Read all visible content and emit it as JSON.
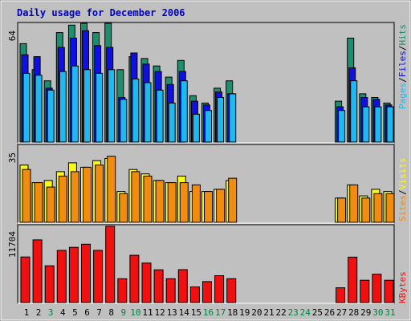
{
  "title": "Daily usage for December 2006",
  "days": [
    "1",
    "2",
    "3",
    "4",
    "5",
    "6",
    "7",
    "8",
    "9",
    "10",
    "11",
    "12",
    "13",
    "14",
    "15",
    "16",
    "17",
    "18",
    "19",
    "20",
    "21",
    "22",
    "23",
    "24",
    "25",
    "26",
    "27",
    "28",
    "29",
    "30",
    "31"
  ],
  "weekend_days": [
    3,
    9,
    10,
    16,
    17,
    23,
    24,
    30,
    31
  ],
  "panels": {
    "hits_files_pages": {
      "ymax_label": "64",
      "legend": [
        "Pages",
        "/",
        "Files",
        "/",
        "Hits"
      ]
    },
    "visits_sites": {
      "ymax_label": "35",
      "legend": [
        "Sites",
        "/",
        "Visits"
      ]
    },
    "kbytes": {
      "ymax_label": "11704",
      "legend": [
        "KBytes"
      ]
    }
  },
  "colors": {
    "hits": "#1e8e6e",
    "files": "#1010e0",
    "pages": "#20b8f0",
    "visits": "#f8f820",
    "sites": "#f08c10",
    "kbytes": "#f01010",
    "weekday_label": "#000000",
    "weekend_label": "#008040",
    "title": "#0000c0"
  },
  "chart_data": [
    {
      "type": "bar",
      "title": "Daily usage for December 2006",
      "categories": [
        "1",
        "2",
        "3",
        "4",
        "5",
        "6",
        "7",
        "8",
        "9",
        "10",
        "11",
        "12",
        "13",
        "14",
        "15",
        "16",
        "17",
        "18",
        "19",
        "20",
        "21",
        "22",
        "23",
        "24",
        "25",
        "26",
        "27",
        "28",
        "29",
        "30",
        "31"
      ],
      "ylim": [
        0,
        64
      ],
      "series": [
        {
          "name": "Hits",
          "values": [
            53,
            39,
            33,
            59,
            63,
            64,
            59,
            64,
            39,
            46,
            45,
            41,
            35,
            44,
            25,
            21,
            29,
            33,
            0,
            0,
            0,
            0,
            0,
            0,
            0,
            0,
            22,
            56,
            26,
            24,
            21
          ]
        },
        {
          "name": "Files",
          "values": [
            47,
            46,
            29,
            51,
            56,
            60,
            52,
            51,
            24,
            48,
            42,
            38,
            31,
            38,
            22,
            20,
            27,
            26,
            0,
            0,
            0,
            0,
            0,
            0,
            0,
            0,
            19,
            40,
            24,
            23,
            20
          ]
        },
        {
          "name": "Pages",
          "values": [
            37,
            36,
            28,
            38,
            41,
            39,
            37,
            39,
            23,
            34,
            32,
            28,
            21,
            33,
            15,
            17,
            24,
            26,
            0,
            0,
            0,
            0,
            0,
            0,
            0,
            0,
            17,
            33,
            19,
            19,
            19
          ]
        }
      ]
    },
    {
      "type": "bar",
      "categories": [
        "1",
        "2",
        "3",
        "4",
        "5",
        "6",
        "7",
        "8",
        "9",
        "10",
        "11",
        "12",
        "13",
        "14",
        "15",
        "16",
        "17",
        "18",
        "19",
        "20",
        "21",
        "22",
        "23",
        "24",
        "25",
        "26",
        "27",
        "28",
        "29",
        "30",
        "31"
      ],
      "ylim": [
        0,
        35
      ],
      "series": [
        {
          "name": "Visits",
          "values": [
            26,
            18,
            19,
            23,
            27,
            25,
            28,
            29,
            14,
            24,
            22,
            19,
            18,
            21,
            14,
            14,
            15,
            19,
            0,
            0,
            0,
            0,
            0,
            0,
            0,
            0,
            11,
            17,
            12,
            15,
            14
          ]
        },
        {
          "name": "Sites",
          "values": [
            24,
            18,
            16,
            21,
            23,
            25,
            26,
            30,
            13,
            23,
            21,
            19,
            18,
            18,
            17,
            14,
            15,
            20,
            0,
            0,
            0,
            0,
            0,
            0,
            0,
            0,
            11,
            17,
            11,
            13,
            13
          ]
        }
      ]
    },
    {
      "type": "bar",
      "categories": [
        "1",
        "2",
        "3",
        "4",
        "5",
        "6",
        "7",
        "8",
        "9",
        "10",
        "11",
        "12",
        "13",
        "14",
        "15",
        "16",
        "17",
        "18",
        "19",
        "20",
        "21",
        "22",
        "23",
        "24",
        "25",
        "26",
        "27",
        "28",
        "29",
        "30",
        "31"
      ],
      "ylim": [
        0,
        11704
      ],
      "series": [
        {
          "name": "KBytes",
          "values": [
            6920,
            9520,
            5580,
            7930,
            8390,
            8860,
            7930,
            11580,
            3620,
            7180,
            6000,
            4970,
            3620,
            5000,
            2380,
            3180,
            4080,
            3620,
            0,
            0,
            0,
            0,
            0,
            0,
            0,
            0,
            2240,
            6900,
            3390,
            4300,
            3390
          ]
        }
      ]
    }
  ]
}
